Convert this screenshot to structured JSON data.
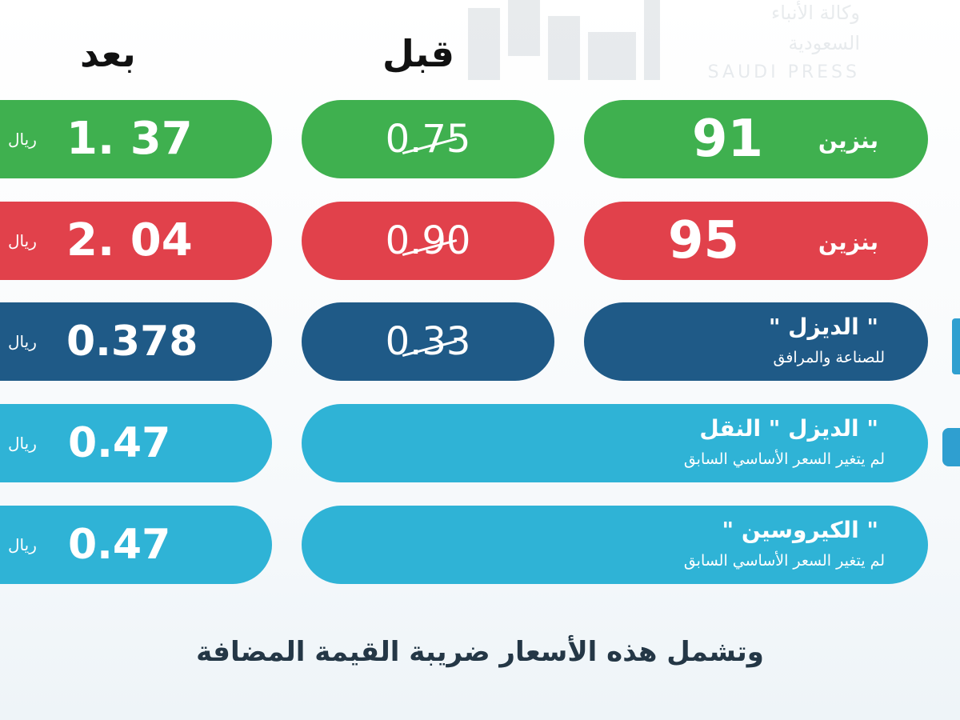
{
  "headers": {
    "before": "قبل",
    "after": "بعد"
  },
  "watermark": {
    "line1": "وكالة الأنباء",
    "line2": "السعودية",
    "line3": "SAUDI PRESS"
  },
  "unit": "ريال",
  "rows": [
    {
      "label": "بنزين",
      "grade": "91",
      "sub": "",
      "before": "0.75",
      "after": "1. 37",
      "color": "#3fb04f"
    },
    {
      "label": "بنزين",
      "grade": "95",
      "sub": "",
      "before": "0.90",
      "after": "2. 04",
      "color": "#e1414b"
    },
    {
      "label": "\" الديزل \"",
      "grade": "",
      "sub": "للصناعة والمرافق",
      "before": "0.33",
      "after": "0.378",
      "color": "#1f5a87"
    },
    {
      "label": "\" الديزل \" النقل",
      "grade": "",
      "sub": "لم يتغير السعر الأساسي السابق",
      "before": "",
      "after": "0.47",
      "color": "#2fb3d6"
    },
    {
      "label": "\" الكيروسين \"",
      "grade": "",
      "sub": "لم يتغير السعر الأساسي السابق",
      "before": "",
      "after": "0.47",
      "color": "#2fb3d6"
    }
  ],
  "footnote": "وتشمل هذه الأسعار ضريبة القيمة المضافة"
}
